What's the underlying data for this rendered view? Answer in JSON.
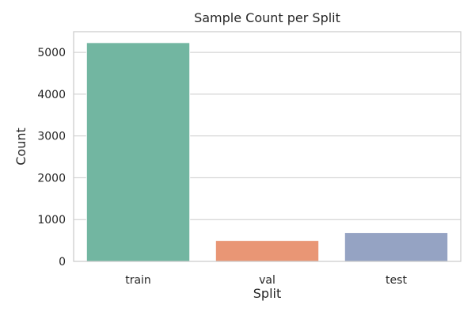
{
  "chart_data": {
    "type": "bar",
    "title": "Sample Count per Split",
    "xlabel": "Split",
    "ylabel": "Count",
    "categories": [
      "train",
      "val",
      "test"
    ],
    "values": [
      5232,
      500,
      690
    ],
    "ylim": [
      0,
      5494
    ],
    "yticks": [
      "0",
      "1000",
      "2000",
      "3000",
      "4000",
      "5000"
    ],
    "grid": "y",
    "colors": [
      "#72b6a1",
      "#e99675",
      "#95a3c3"
    ]
  }
}
